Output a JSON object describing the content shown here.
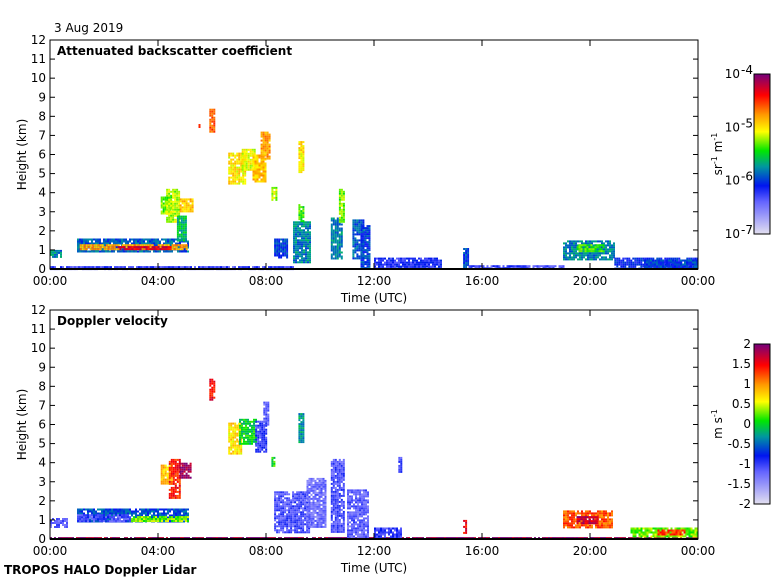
{
  "date_label": "3 Aug 2019",
  "footer": "TROPOS HALO Doppler Lidar",
  "chart_data": [
    {
      "type": "heatmap",
      "title": "Attenuated backscatter coefficient",
      "xlabel": "Time (UTC)",
      "ylabel": "Height (km)",
      "xlim": [
        0,
        24
      ],
      "ylim": [
        0,
        12
      ],
      "xticks": [
        0,
        4,
        8,
        12,
        16,
        20,
        24
      ],
      "xtick_labels": [
        "00:00",
        "04:00",
        "08:00",
        "12:00",
        "16:00",
        "20:00",
        "00:00"
      ],
      "yticks": [
        0,
        1,
        2,
        3,
        4,
        5,
        6,
        7,
        8,
        9,
        10,
        11,
        12
      ],
      "colorbar": {
        "scale": "log10",
        "range": [
          -7,
          -4
        ],
        "ticks": [
          -7,
          -6,
          -5,
          -4
        ],
        "tick_labels": [
          "10",
          "10",
          "10",
          "10"
        ],
        "tick_exponents": [
          "-7",
          "-6",
          "-5",
          "-4"
        ],
        "unit": "sr",
        "unit_exp1": "-1",
        "unit_mid": " m",
        "unit_exp2": "-1"
      },
      "regions_note": "t0,t1 in hours UTC; h0,h1 in km; v = log10(backscatter)",
      "regions": [
        [
          0.0,
          9.0,
          0.0,
          0.15,
          -6.3
        ],
        [
          0.0,
          0.4,
          0.6,
          1.0,
          -5.8
        ],
        [
          1.0,
          5.1,
          0.9,
          1.6,
          -5.9
        ],
        [
          1.1,
          5.1,
          1.0,
          1.3,
          -4.8
        ],
        [
          2.5,
          4.5,
          1.05,
          1.2,
          -4.3
        ],
        [
          4.1,
          4.5,
          2.9,
          3.8,
          -5.3
        ],
        [
          4.3,
          4.8,
          2.5,
          4.2,
          -5.2
        ],
        [
          4.8,
          5.3,
          3.0,
          3.7,
          -4.9
        ],
        [
          4.7,
          5.0,
          1.5,
          2.8,
          -5.6
        ],
        [
          5.9,
          6.1,
          7.2,
          8.4,
          -4.6
        ],
        [
          5.5,
          5.55,
          7.4,
          7.6,
          -4.6
        ],
        [
          6.6,
          7.2,
          4.5,
          6.1,
          -5.0
        ],
        [
          7.1,
          7.6,
          5.2,
          6.3,
          -5.1
        ],
        [
          7.5,
          8.0,
          4.6,
          6.0,
          -4.9
        ],
        [
          7.8,
          8.1,
          5.8,
          7.2,
          -4.8
        ],
        [
          9.2,
          9.4,
          5.1,
          6.7,
          -5.0
        ],
        [
          8.2,
          8.4,
          3.6,
          4.3,
          -5.2
        ],
        [
          8.3,
          8.8,
          0.6,
          1.6,
          -6.0
        ],
        [
          9.0,
          9.6,
          0.3,
          2.5,
          -5.8
        ],
        [
          9.2,
          9.4,
          2.5,
          3.4,
          -5.4
        ],
        [
          10.4,
          10.8,
          0.5,
          2.7,
          -5.8
        ],
        [
          10.7,
          10.9,
          2.5,
          4.2,
          -5.3
        ],
        [
          11.2,
          11.6,
          0.6,
          2.6,
          -5.9
        ],
        [
          11.5,
          11.8,
          0.0,
          2.3,
          -6.0
        ],
        [
          12.0,
          14.5,
          0.0,
          0.6,
          -6.2
        ],
        [
          15.3,
          15.5,
          0.0,
          1.1,
          -6.0
        ],
        [
          15.5,
          19.0,
          0.0,
          0.2,
          -6.3
        ],
        [
          19.0,
          20.9,
          0.5,
          1.5,
          -5.8
        ],
        [
          19.5,
          20.5,
          0.9,
          1.3,
          -5.4
        ],
        [
          20.9,
          24.0,
          0.0,
          0.6,
          -6.1
        ],
        [
          22.0,
          24.0,
          0.0,
          0.5,
          -6.0
        ]
      ]
    },
    {
      "type": "heatmap",
      "title": "Doppler velocity",
      "xlabel": "Time (UTC)",
      "ylabel": "Height (km)",
      "xlim": [
        0,
        24
      ],
      "ylim": [
        0,
        12
      ],
      "xticks": [
        0,
        4,
        8,
        12,
        16,
        20,
        24
      ],
      "xtick_labels": [
        "00:00",
        "04:00",
        "08:00",
        "12:00",
        "16:00",
        "20:00",
        "00:00"
      ],
      "yticks": [
        0,
        1,
        2,
        3,
        4,
        5,
        6,
        7,
        8,
        9,
        10,
        11,
        12
      ],
      "colorbar": {
        "scale": "linear",
        "range": [
          -2,
          2
        ],
        "ticks": [
          -2,
          -1.5,
          -1,
          -0.5,
          0,
          0.5,
          1,
          1.5,
          2
        ],
        "tick_labels": [
          "-2",
          "-1.5",
          "-1",
          "-0.5",
          "0",
          "0.5",
          "1",
          "1.5",
          "2"
        ],
        "unit": "m s",
        "unit_exp1": "-1"
      },
      "regions_note": "t0,t1 in hours UTC; h0,h1 in km; v = velocity in m/s",
      "regions": [
        [
          0.0,
          24.0,
          0.0,
          0.1,
          1.9
        ],
        [
          0.0,
          0.6,
          0.6,
          1.1,
          -1.2
        ],
        [
          1.0,
          5.1,
          0.9,
          1.6,
          -0.6
        ],
        [
          1.0,
          3.0,
          0.9,
          1.3,
          -1.1
        ],
        [
          3.0,
          5.1,
          0.9,
          1.2,
          0.3
        ],
        [
          4.1,
          4.5,
          2.9,
          3.9,
          0.8
        ],
        [
          4.4,
          4.8,
          2.2,
          4.2,
          1.4
        ],
        [
          4.8,
          5.2,
          3.2,
          4.0,
          1.9
        ],
        [
          5.9,
          6.1,
          7.3,
          8.4,
          1.5
        ],
        [
          6.6,
          7.1,
          4.5,
          6.1,
          0.7
        ],
        [
          7.0,
          7.6,
          5.0,
          6.3,
          0.0
        ],
        [
          7.6,
          8.0,
          4.6,
          6.2,
          -1.0
        ],
        [
          7.9,
          8.1,
          6.0,
          7.2,
          -1.2
        ],
        [
          9.2,
          9.4,
          5.1,
          6.6,
          -0.3
        ],
        [
          8.2,
          8.3,
          3.8,
          4.3,
          0.1
        ],
        [
          8.3,
          9.6,
          0.4,
          2.5,
          -1.1
        ],
        [
          9.5,
          10.2,
          0.6,
          3.2,
          -1.3
        ],
        [
          10.4,
          10.9,
          0.4,
          4.2,
          -1.1
        ],
        [
          11.0,
          11.8,
          0.0,
          2.6,
          -1.2
        ],
        [
          12.0,
          13.0,
          0.0,
          0.6,
          -1.0
        ],
        [
          12.9,
          13.0,
          3.5,
          4.3,
          -1.1
        ],
        [
          15.3,
          15.4,
          0.3,
          1.0,
          1.5
        ],
        [
          19.0,
          20.8,
          0.6,
          1.5,
          1.2
        ],
        [
          19.5,
          20.3,
          0.8,
          1.2,
          1.7
        ],
        [
          21.5,
          24.0,
          0.1,
          0.6,
          0.3
        ],
        [
          22.5,
          23.5,
          0.2,
          0.5,
          1.3
        ]
      ]
    }
  ]
}
